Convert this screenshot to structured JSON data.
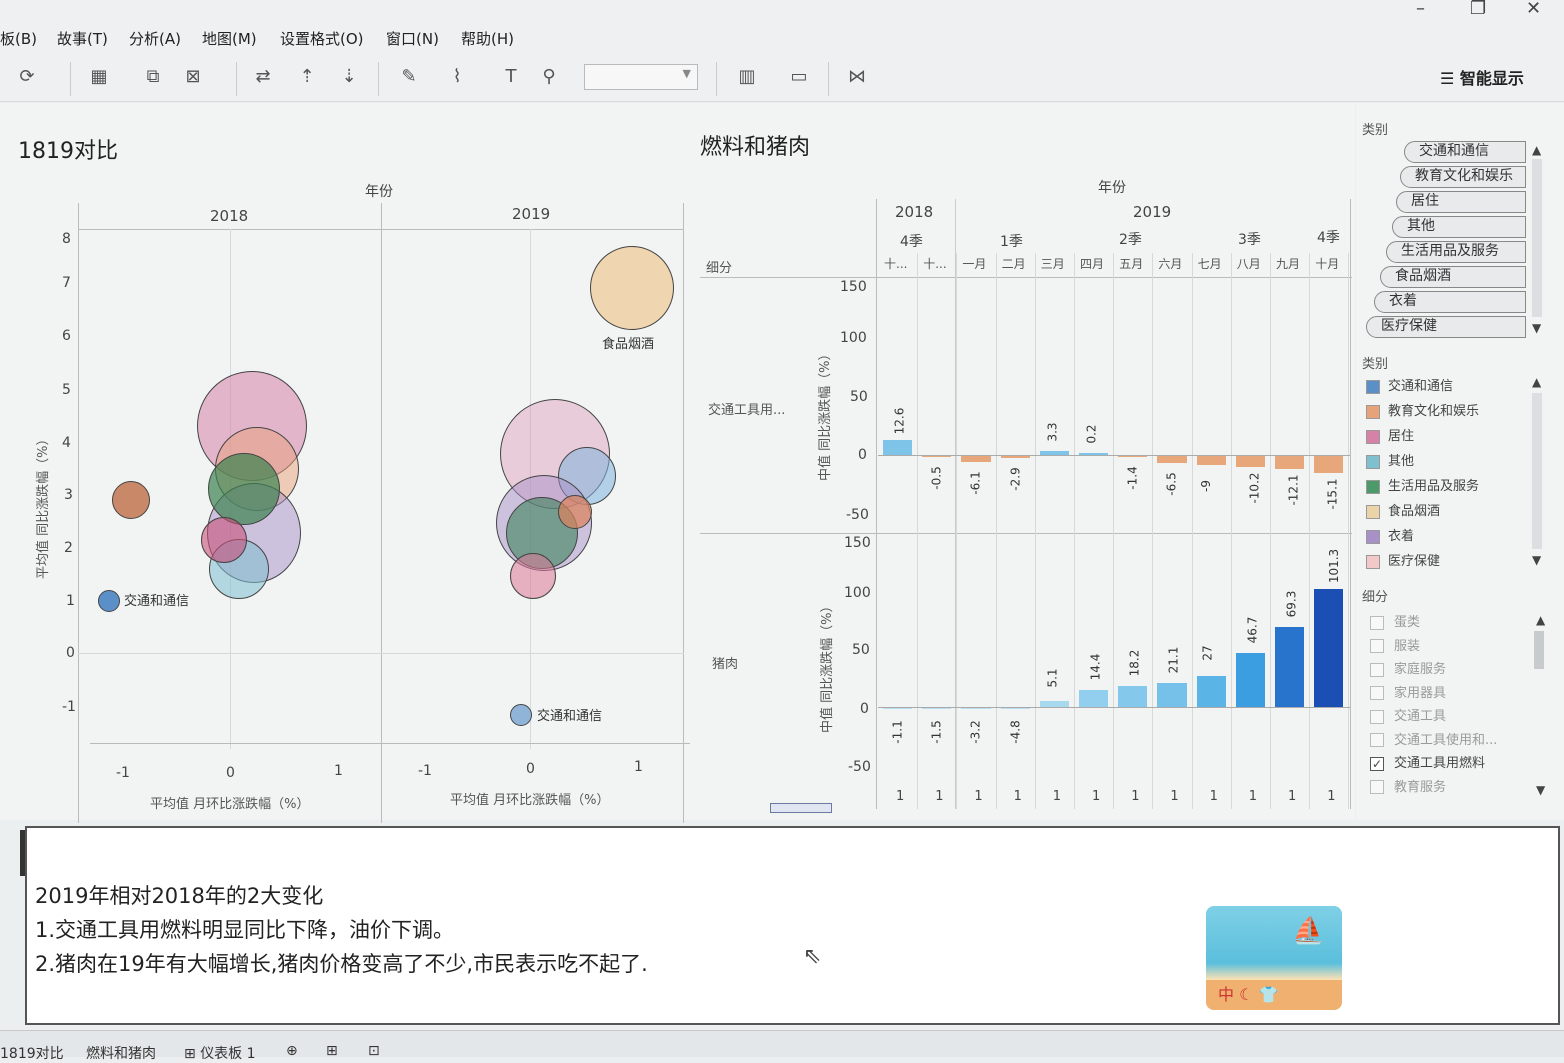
{
  "menu": {
    "items": [
      "板(B)",
      "故事(T)",
      "分析(A)",
      "地图(M)",
      "设置格式(O)",
      "窗口(N)",
      "帮助(H)"
    ],
    "show_me": "智能显示"
  },
  "left_panel": {
    "title": "1819对比",
    "column_header": "年份",
    "years": [
      "2018",
      "2019"
    ],
    "y_axis_label": "平均值 同比涨跌幅（%）",
    "x_axis_label": "平均值 月环比涨跌幅（%）",
    "y_ticks": [
      "8",
      "7",
      "6",
      "5",
      "4",
      "3",
      "2",
      "1",
      "0",
      "-1"
    ],
    "x_ticks": [
      "-1",
      "0",
      "1"
    ],
    "label_food": "食品烟酒",
    "label_transport_2018": "交通和通信",
    "label_transport_2019": "交通和通信"
  },
  "right_panel": {
    "title": "燃料和猪肉",
    "column_header": "年份",
    "years": [
      "2018",
      "2019"
    ],
    "quarters": [
      "4季",
      "1季",
      "2季",
      "3季",
      "4季"
    ],
    "row_header": "细分",
    "months": [
      "十...",
      "十...",
      "一月",
      "二月",
      "三月",
      "四月",
      "五月",
      "六月",
      "七月",
      "八月",
      "九月",
      "十月"
    ],
    "y_axis_label": "中值 同比涨跌幅（%）",
    "row_fuel": "交通工具用...",
    "row_pork": "猪肉",
    "fuel_ticks": [
      "150",
      "100",
      "50",
      "0",
      "-50"
    ],
    "pork_ticks": [
      "150",
      "100",
      "50",
      "0",
      "-50"
    ],
    "bottom_counts": [
      "1",
      "1",
      "1",
      "1",
      "1",
      "1",
      "1",
      "1",
      "1",
      "1",
      "1",
      "1"
    ]
  },
  "chart_data": [
    {
      "type": "bar",
      "categories": [
        "十...",
        "十...",
        "一月",
        "二月",
        "三月",
        "四月",
        "五月",
        "六月",
        "七月",
        "八月",
        "九月",
        "十月"
      ],
      "series": [
        {
          "name": "交通工具用...",
          "values": [
            12.6,
            -0.5,
            -6.1,
            -2.9,
            3.3,
            0.2,
            -1.4,
            -6.5,
            -9,
            -10.2,
            -12.1,
            -15.1
          ]
        },
        {
          "name": "猪肉",
          "values": [
            -1.1,
            -1.5,
            -3.2,
            -4.8,
            5.1,
            14.4,
            18.2,
            21.1,
            27,
            46.7,
            69.3,
            101.3
          ]
        }
      ],
      "ylabel": "中值 同比涨跌幅（%）",
      "ylim": [
        -50,
        150
      ],
      "value_labels": {
        "fuel": [
          "12.6",
          "-0.5",
          "-6.1",
          "-2.9",
          "3.3",
          "0.2",
          "-1.4",
          "-6.5",
          "-9",
          "-10.2",
          "-12.1",
          "-15.1"
        ],
        "pork": [
          "-1.1",
          "-1.5",
          "-3.2",
          "-4.8",
          "5.1",
          "14.4",
          "18.2",
          "21.1",
          "27",
          "46.7",
          "69.3",
          "101.3"
        ]
      }
    }
  ],
  "sidebar": {
    "color_header": "类别",
    "size_items": [
      "交通和通信",
      "教育文化和娱乐",
      "居住",
      "其他",
      "生活用品及服务",
      "食品烟酒",
      "衣着",
      "医疗保健"
    ],
    "legend_header": "类别",
    "legend_items": [
      {
        "label": "交通和通信",
        "color": "#5b8fc7"
      },
      {
        "label": "教育文化和娱乐",
        "color": "#e8a27a"
      },
      {
        "label": "居住",
        "color": "#d682a8"
      },
      {
        "label": "其他",
        "color": "#7ec0cf"
      },
      {
        "label": "生活用品及服务",
        "color": "#4c9a6a"
      },
      {
        "label": "食品烟酒",
        "color": "#ecd4a8"
      },
      {
        "label": "衣着",
        "color": "#a890c8"
      },
      {
        "label": "医疗保健",
        "color": "#f3c8c8"
      }
    ],
    "filter_header": "细分",
    "filter_items": [
      {
        "label": "蛋类",
        "checked": false
      },
      {
        "label": "服装",
        "checked": false
      },
      {
        "label": "家庭服务",
        "checked": false
      },
      {
        "label": "家用器具",
        "checked": false
      },
      {
        "label": "交通工具",
        "checked": false
      },
      {
        "label": "交通工具使用和...",
        "checked": false
      },
      {
        "label": "交通工具用燃料",
        "checked": true
      },
      {
        "label": "教育服务",
        "checked": false
      }
    ]
  },
  "story": {
    "heading": "2019年相对2018年的2大变化",
    "line1": "1.交通工具用燃料明显同比下降，油价下调。",
    "line2": "2.猪肉在19年有大幅增长,猪肉价格变高了不少,市民表示吃不起了."
  },
  "ime_badge": "中",
  "tabs": [
    "1819对比",
    "燃料和猪肉",
    "仪表板 1"
  ]
}
